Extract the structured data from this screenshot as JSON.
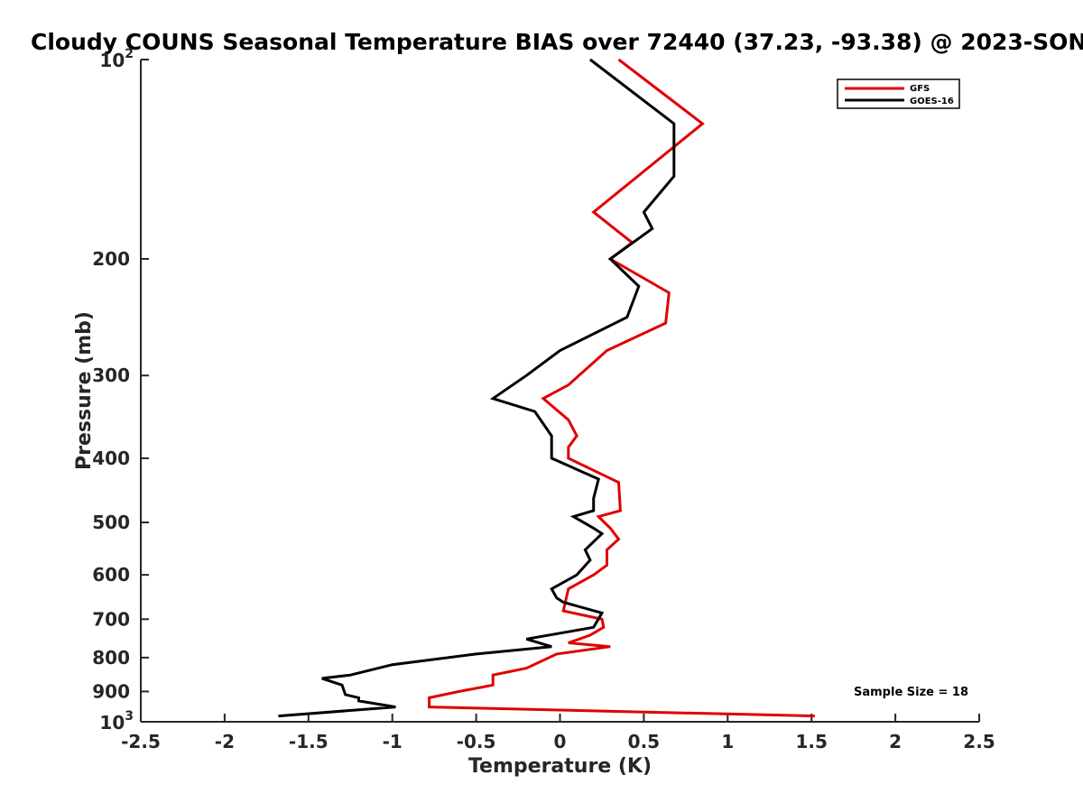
{
  "chart_data": {
    "type": "line",
    "title": "Cloudy COUNS Seasonal Temperature BIAS over 72440 (37.23, -93.38) @ 2023-SON",
    "xlabel": "Temperature (K)",
    "ylabel": "Pressure (mb)",
    "xlim": [
      -2.5,
      2.5
    ],
    "ylim": [
      100,
      1000
    ],
    "y_scale": "log",
    "y_reversed": true,
    "grid": false,
    "legend_position": "top-right",
    "x_ticks": [
      "-2.5",
      "-2",
      "-1.5",
      "-1",
      "-0.5",
      "0",
      "0.5",
      "1",
      "1.5",
      "2",
      "2.5"
    ],
    "y_ticks": [
      {
        "value": 100,
        "base": "10",
        "exp": "2"
      },
      {
        "value": 200,
        "base": "200",
        "exp": ""
      },
      {
        "value": 300,
        "base": "300",
        "exp": ""
      },
      {
        "value": 400,
        "base": "400",
        "exp": ""
      },
      {
        "value": 500,
        "base": "500",
        "exp": ""
      },
      {
        "value": 600,
        "base": "600",
        "exp": ""
      },
      {
        "value": 700,
        "base": "700",
        "exp": ""
      },
      {
        "value": 800,
        "base": "800",
        "exp": ""
      },
      {
        "value": 900,
        "base": "900",
        "exp": ""
      },
      {
        "value": 1000,
        "base": "10",
        "exp": "3"
      }
    ],
    "annotation": "Sample Size = 18",
    "series": [
      {
        "name": "GFS",
        "color": "#e00000",
        "points": [
          [
            0.35,
            100
          ],
          [
            0.85,
            125
          ],
          [
            0.2,
            170
          ],
          [
            0.43,
            189
          ],
          [
            0.3,
            200
          ],
          [
            0.65,
            225
          ],
          [
            0.63,
            250
          ],
          [
            0.28,
            275
          ],
          [
            0.05,
            310
          ],
          [
            -0.1,
            325
          ],
          [
            0.05,
            350
          ],
          [
            0.1,
            370
          ],
          [
            0.05,
            385
          ],
          [
            0.05,
            400
          ],
          [
            0.35,
            435
          ],
          [
            0.36,
            480
          ],
          [
            0.23,
            490
          ],
          [
            0.3,
            510
          ],
          [
            0.35,
            530
          ],
          [
            0.28,
            550
          ],
          [
            0.28,
            580
          ],
          [
            0.2,
            600
          ],
          [
            0.05,
            630
          ],
          [
            0.02,
            680
          ],
          [
            0.25,
            700
          ],
          [
            0.26,
            720
          ],
          [
            0.18,
            740
          ],
          [
            0.05,
            760
          ],
          [
            0.3,
            770
          ],
          [
            -0.02,
            790
          ],
          [
            -0.2,
            830
          ],
          [
            -0.3,
            840
          ],
          [
            -0.4,
            850
          ],
          [
            -0.4,
            880
          ],
          [
            -0.6,
            900
          ],
          [
            -0.78,
            920
          ],
          [
            -0.78,
            950
          ],
          [
            1.52,
            980
          ]
        ]
      },
      {
        "name": "GOES-16",
        "color": "#000000",
        "points": [
          [
            0.18,
            100
          ],
          [
            0.68,
            125
          ],
          [
            0.68,
            150
          ],
          [
            0.5,
            170
          ],
          [
            0.55,
            180
          ],
          [
            0.3,
            200
          ],
          [
            0.47,
            220
          ],
          [
            0.4,
            245
          ],
          [
            0.0,
            275
          ],
          [
            -0.2,
            300
          ],
          [
            -0.4,
            325
          ],
          [
            -0.15,
            340
          ],
          [
            -0.05,
            370
          ],
          [
            -0.05,
            400
          ],
          [
            0.23,
            430
          ],
          [
            0.2,
            460
          ],
          [
            0.2,
            480
          ],
          [
            0.08,
            490
          ],
          [
            0.2,
            510
          ],
          [
            0.25,
            520
          ],
          [
            0.15,
            550
          ],
          [
            0.18,
            570
          ],
          [
            0.1,
            600
          ],
          [
            -0.05,
            630
          ],
          [
            -0.02,
            650
          ],
          [
            0.02,
            660
          ],
          [
            0.25,
            685
          ],
          [
            0.2,
            720
          ],
          [
            -0.2,
            750
          ],
          [
            -0.05,
            770
          ],
          [
            -0.5,
            790
          ],
          [
            -1.0,
            820
          ],
          [
            -1.25,
            850
          ],
          [
            -1.42,
            860
          ],
          [
            -1.3,
            880
          ],
          [
            -1.28,
            910
          ],
          [
            -1.2,
            920
          ],
          [
            -1.2,
            930
          ],
          [
            -0.98,
            950
          ],
          [
            -1.68,
            980
          ]
        ]
      }
    ]
  }
}
